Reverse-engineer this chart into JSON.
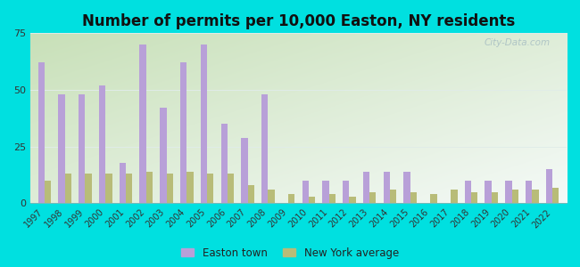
{
  "title": "Number of permits per 10,000 Easton, NY residents",
  "years": [
    1997,
    1998,
    1999,
    2000,
    2001,
    2002,
    2003,
    2004,
    2005,
    2006,
    2007,
    2008,
    2009,
    2010,
    2011,
    2012,
    2013,
    2014,
    2015,
    2016,
    2017,
    2018,
    2019,
    2020,
    2021,
    2022
  ],
  "easton": [
    62,
    48,
    48,
    52,
    18,
    70,
    42,
    62,
    70,
    35,
    29,
    48,
    0,
    10,
    10,
    10,
    14,
    14,
    14,
    0,
    0,
    10,
    10,
    10,
    10,
    15
  ],
  "ny_avg": [
    10,
    13,
    13,
    13,
    13,
    14,
    13,
    14,
    13,
    13,
    8,
    6,
    4,
    3,
    4,
    3,
    5,
    6,
    5,
    4,
    6,
    5,
    5,
    6,
    6,
    7
  ],
  "easton_color": "#b8a0d8",
  "ny_avg_color": "#b8bc78",
  "background_color": "#00e0e0",
  "ylim": [
    0,
    75
  ],
  "yticks": [
    0,
    25,
    50,
    75
  ],
  "bar_width": 0.32,
  "title_fontsize": 12,
  "legend_label_easton": "Easton town",
  "legend_label_ny": "New York average",
  "watermark": "City-Data.com",
  "grid_color": "#d8e8d8",
  "bg_colors": [
    "#c8e8c0",
    "#e8f4f0",
    "#f0f8f8"
  ],
  "tick_fontsize": 7
}
